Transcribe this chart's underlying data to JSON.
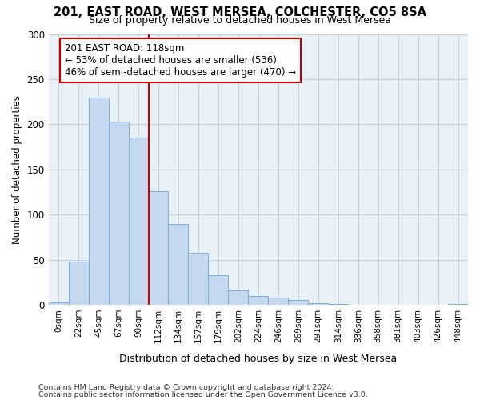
{
  "title1": "201, EAST ROAD, WEST MERSEA, COLCHESTER, CO5 8SA",
  "title2": "Size of property relative to detached houses in West Mersea",
  "xlabel": "Distribution of detached houses by size in West Mersea",
  "ylabel": "Number of detached properties",
  "footnote1": "Contains HM Land Registry data © Crown copyright and database right 2024.",
  "footnote2": "Contains public sector information licensed under the Open Government Licence v3.0.",
  "annotation_line1": "201 EAST ROAD: 118sqm",
  "annotation_line2": "← 53% of detached houses are smaller (536)",
  "annotation_line3": "46% of semi-detached houses are larger (470) →",
  "bar_color": "#c5d8f0",
  "bar_edge_color": "#7bafd4",
  "line_color": "#cc0000",
  "categories": [
    "0sqm",
    "22sqm",
    "45sqm",
    "67sqm",
    "90sqm",
    "112sqm",
    "134sqm",
    "157sqm",
    "179sqm",
    "202sqm",
    "224sqm",
    "246sqm",
    "269sqm",
    "291sqm",
    "314sqm",
    "336sqm",
    "358sqm",
    "381sqm",
    "403sqm",
    "426sqm",
    "448sqm"
  ],
  "values": [
    3,
    48,
    230,
    203,
    185,
    126,
    90,
    58,
    33,
    16,
    10,
    8,
    5,
    2,
    1,
    0,
    0,
    0,
    0,
    0,
    1
  ],
  "ylim": [
    0,
    300
  ],
  "yticks": [
    0,
    50,
    100,
    150,
    200,
    250,
    300
  ],
  "marker_bar_index": 5,
  "bg_color": "#e8f0f8"
}
